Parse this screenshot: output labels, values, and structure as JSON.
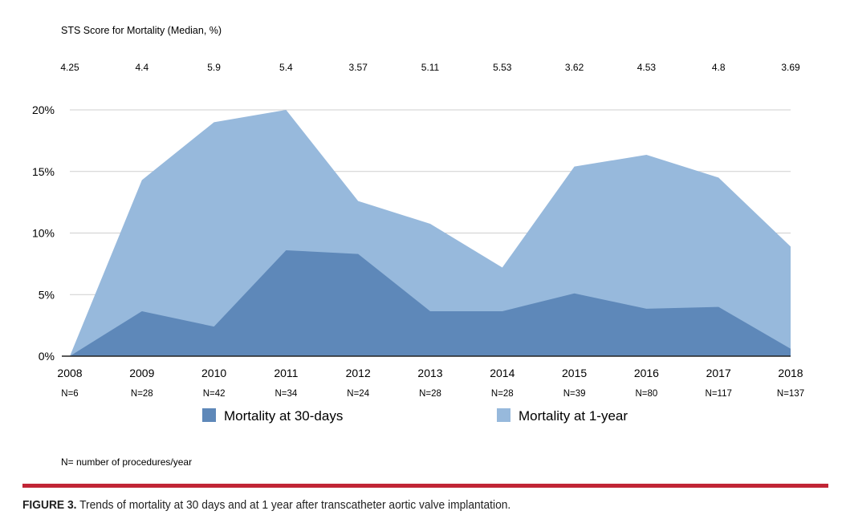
{
  "chart_data": {
    "type": "area",
    "sts_title": "STS Score for Mortality (Median, %)",
    "sts_values": [
      "4.25",
      "4.4",
      "5.9",
      "5.4",
      "3.57",
      "5.11",
      "5.53",
      "3.62",
      "4.53",
      "4.8",
      "3.69"
    ],
    "categories": [
      "2008",
      "2009",
      "2010",
      "2011",
      "2012",
      "2013",
      "2014",
      "2015",
      "2016",
      "2017",
      "2018"
    ],
    "n_labels": [
      "N=6",
      "N=28",
      "N=42",
      "N=34",
      "N=24",
      "N=28",
      "N=28",
      "N=39",
      "N=80",
      "N=117",
      "N=137"
    ],
    "y_ticks": [
      "0%",
      "5%",
      "10%",
      "15%",
      "20%"
    ],
    "y_tick_values": [
      0,
      5,
      10,
      15,
      20
    ],
    "ylim": [
      0,
      20
    ],
    "grid": true,
    "legend_position": "bottom",
    "series": [
      {
        "name": "Mortality at 1-year",
        "color": "#97b9dc",
        "values": [
          0,
          14.3,
          19.0,
          20.0,
          12.6,
          10.75,
          7.2,
          15.4,
          16.35,
          14.5,
          8.9
        ]
      },
      {
        "name": "Mortality at 30-days",
        "color": "#5e88b9",
        "values": [
          0,
          3.65,
          2.4,
          8.6,
          8.3,
          3.65,
          3.65,
          5.1,
          3.85,
          4.0,
          0.6
        ]
      }
    ],
    "legend": [
      "Mortality at 30-days",
      "Mortality at 1-year"
    ],
    "footnote": "N= number of procedures/year"
  },
  "caption": {
    "label": "FIGURE 3.",
    "text": " Trends of mortality at 30 days and at 1 year after transcatheter aortic valve implantation."
  }
}
